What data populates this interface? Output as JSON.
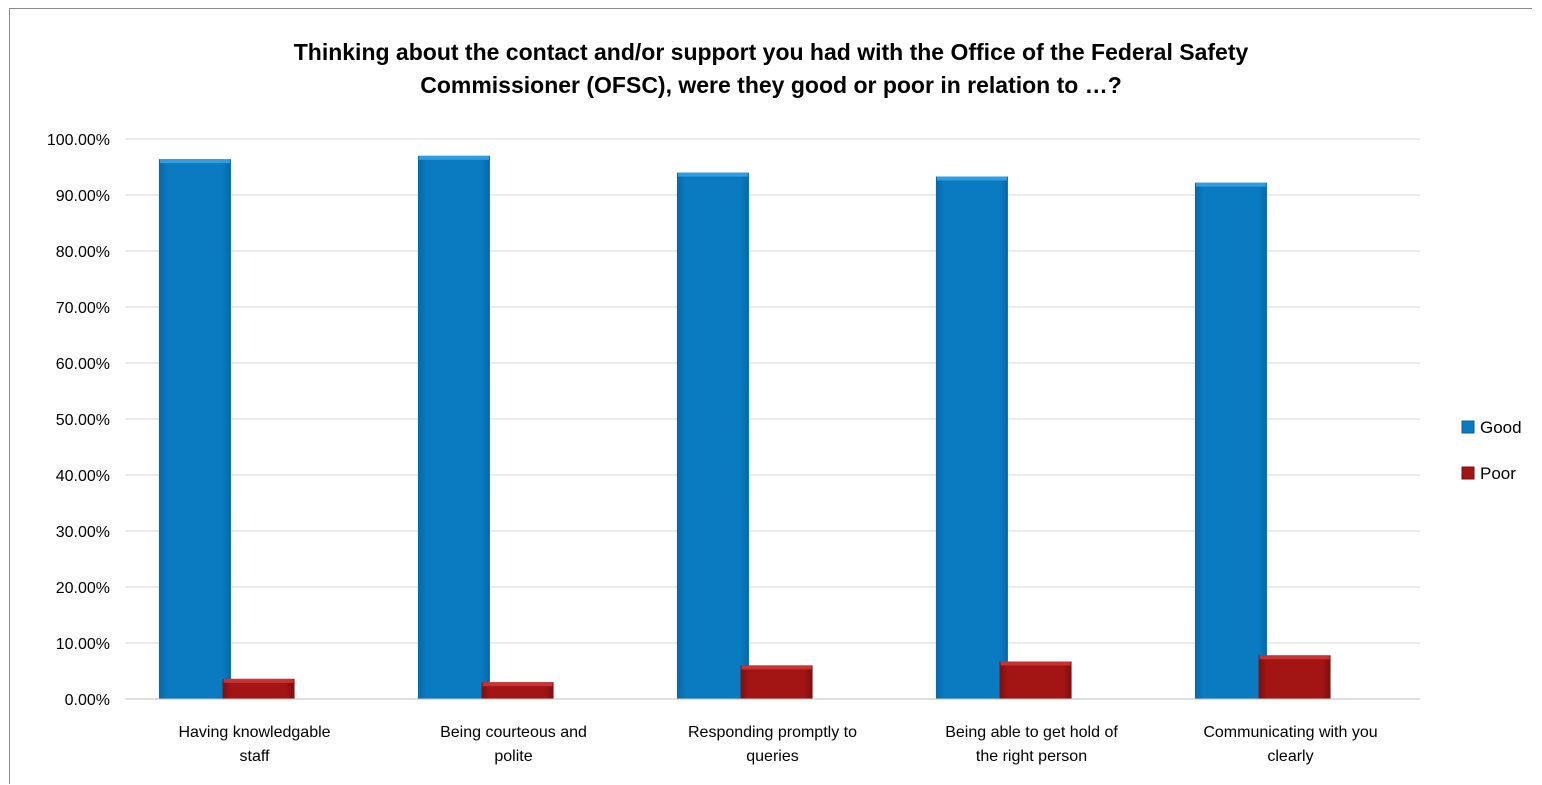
{
  "chart_data": {
    "type": "bar",
    "title_lines": [
      "Thinking about the contact and/or support you had with the Office of the Federal Safety",
      "Commissioner (OFSC), were they good or poor in relation to …?"
    ],
    "categories": [
      [
        "Having knowledgable",
        "staff"
      ],
      [
        "Being courteous and",
        "polite"
      ],
      [
        "Responding promptly to",
        "queries"
      ],
      [
        "Being able to get hold of",
        "the right person"
      ],
      [
        "Communicating with you",
        "clearly"
      ]
    ],
    "series": [
      {
        "name": "Good",
        "color": "#0a7bc1",
        "values": [
          96.4,
          97.0,
          94.0,
          93.3,
          92.2
        ]
      },
      {
        "name": "Poor",
        "color": "#a31515",
        "values": [
          3.6,
          3.0,
          6.0,
          6.7,
          7.8
        ]
      }
    ],
    "ylim": [
      0,
      100
    ],
    "yticks": [
      "0.00%",
      "10.00%",
      "20.00%",
      "30.00%",
      "40.00%",
      "50.00%",
      "60.00%",
      "70.00%",
      "80.00%",
      "90.00%",
      "100.00%"
    ],
    "grid": true,
    "legend_position": "right"
  }
}
